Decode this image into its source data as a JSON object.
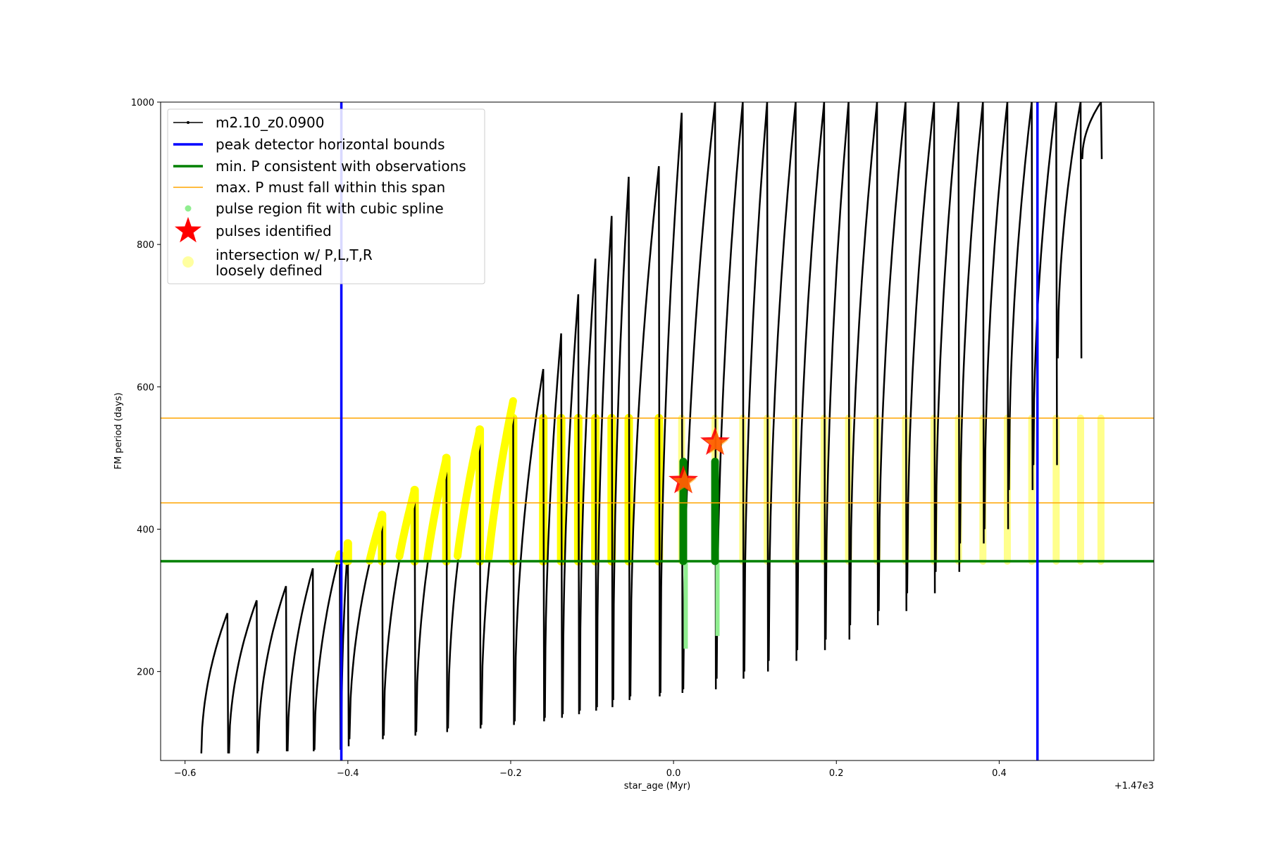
{
  "chart_data": {
    "type": "line",
    "xlabel": "star_age (Myr)",
    "ylabel": "FM period (days)",
    "x_offset_label": "+1.47e3",
    "xlim": [
      -0.63,
      0.59
    ],
    "ylim": [
      75,
      1000
    ],
    "x_ticks": [
      -0.6,
      -0.4,
      -0.2,
      0.0,
      0.2,
      0.4
    ],
    "x_tick_labels": [
      "−0.6",
      "−0.4",
      "−0.2",
      "0.0",
      "0.2",
      "0.4"
    ],
    "y_ticks": [
      200,
      400,
      600,
      800,
      1000
    ],
    "y_tick_labels": [
      "200",
      "400",
      "600",
      "800",
      "1000"
    ],
    "grid": false,
    "legend_position": "upper-left",
    "legend": [
      {
        "label": "m2.10_z0.0900",
        "color": "#000000",
        "marker": "line-dot"
      },
      {
        "label": "peak detector horizontal bounds",
        "color": "#0000ff",
        "marker": "line"
      },
      {
        "label": "min. P consistent with observations",
        "color": "#008000",
        "marker": "line"
      },
      {
        "label": "max. P must fall within this span",
        "color": "#ffa500",
        "marker": "thin-line"
      },
      {
        "label": "pulse region fit with cubic spline",
        "color": "#90ee90",
        "marker": "dot"
      },
      {
        "label": "pulses identified",
        "color": "#ff0000",
        "marker": "star"
      },
      {
        "label": "intersection w/ P,L,T,R",
        "label2": "loosely defined",
        "color": "#ffffa0",
        "marker": "big-dot"
      }
    ],
    "vertical_lines": [
      {
        "name": "peak detector horizontal bounds",
        "x": [
          -0.408,
          0.447
        ],
        "color": "#0000ff"
      }
    ],
    "horizontal_lines": [
      {
        "name": "min. P consistent with observations",
        "y": 355,
        "color": "#008000"
      },
      {
        "name": "max. P must fall within this span",
        "y": [
          437,
          556
        ],
        "color": "#ffa500"
      }
    ],
    "pulse_series": {
      "x_start": [
        -0.58,
        -0.55,
        -0.512,
        -0.475,
        -0.44,
        -0.405,
        -0.37,
        -0.335,
        -0.29,
        -0.24,
        -0.205,
        -0.18,
        -0.155,
        -0.132,
        -0.111,
        -0.09,
        -0.07,
        -0.03,
        0.012,
        0.051,
        0.089,
        0.12,
        0.165,
        0.2,
        0.235,
        0.27,
        0.3,
        0.33,
        0.36,
        0.39,
        0.418,
        0.447,
        0.475,
        0.5,
        0.525
      ],
      "x_peak": [
        -0.548,
        -0.512,
        -0.476,
        -0.443,
        -0.41,
        -0.4,
        -0.358,
        -0.318,
        -0.279,
        -0.238,
        -0.197,
        -0.16,
        -0.138,
        -0.117,
        -0.096,
        -0.076,
        -0.055,
        -0.018,
        0.01,
        0.051,
        0.085,
        0.115,
        0.15,
        0.185,
        0.215,
        0.25,
        0.285,
        0.32,
        0.35,
        0.38,
        0.41,
        0.44,
        0.47,
        0.5,
        0.525
      ],
      "y_min": [
        85,
        85,
        88,
        88,
        90,
        95,
        105,
        110,
        115,
        120,
        125,
        130,
        135,
        140,
        145,
        150,
        160,
        165,
        170,
        175,
        190,
        200,
        215,
        230,
        245,
        265,
        285,
        310,
        340,
        380,
        400,
        455,
        490,
        640,
        920
      ],
      "y_peak": [
        282,
        300,
        320,
        345,
        365,
        380,
        420,
        455,
        500,
        540,
        580,
        625,
        675,
        730,
        780,
        840,
        895,
        910,
        985,
        1000,
        1000,
        1000,
        1000,
        1000,
        1000,
        1000,
        1000,
        1000,
        1000,
        1000,
        1000,
        1000,
        1000,
        1000,
        1000
      ]
    },
    "pulses_identified": [
      {
        "x": 0.012,
        "y": 468
      },
      {
        "x": 0.051,
        "y": 522
      }
    ]
  }
}
